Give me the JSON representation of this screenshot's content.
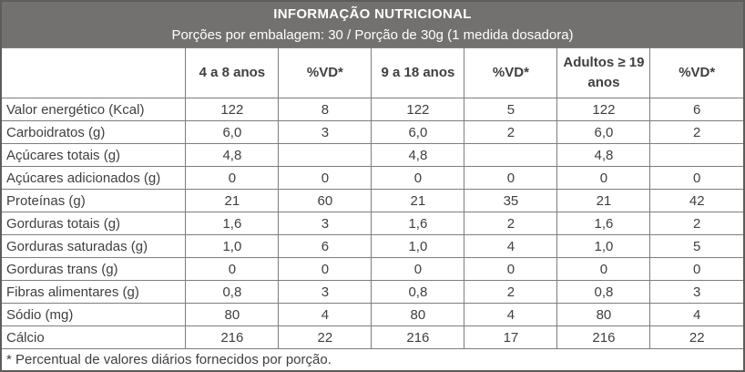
{
  "colors": {
    "header_bg": "#737070",
    "header_text": "#ffffff",
    "grid_border": "#7f7c7c",
    "outer_border": "#5e5b5b",
    "body_text": "#3f3f3f"
  },
  "header": {
    "title": "INFORMAÇÃO NUTRICIONAL",
    "subtitle": "Porções por embalagem: 30 / Porção de 30g (1 medida dosadora)"
  },
  "table": {
    "columns": [
      "",
      "4 a 8 anos",
      "%VD*",
      "9 a 18 anos",
      "%VD*",
      "Adultos ≥ 19 anos",
      "%VD*"
    ],
    "rows": [
      {
        "label": "Valor energético (Kcal)",
        "values": [
          "122",
          "8",
          "122",
          "5",
          "122",
          "6"
        ]
      },
      {
        "label": "Carboidratos (g)",
        "values": [
          "6,0",
          "3",
          "6,0",
          "2",
          "6,0",
          "2"
        ]
      },
      {
        "label": "Açúcares totais (g)",
        "values": [
          "4,8",
          "",
          "4,8",
          "",
          "4,8",
          ""
        ]
      },
      {
        "label": "Açúcares adicionados (g)",
        "values": [
          "0",
          "0",
          "0",
          "0",
          "0",
          "0"
        ]
      },
      {
        "label": "Proteínas (g)",
        "values": [
          "21",
          "60",
          "21",
          "35",
          "21",
          "42"
        ]
      },
      {
        "label": "Gorduras totais (g)",
        "values": [
          "1,6",
          "3",
          "1,6",
          "2",
          "1,6",
          "2"
        ]
      },
      {
        "label": "Gorduras saturadas (g)",
        "values": [
          "1,0",
          "6",
          "1,0",
          "4",
          "1,0",
          "5"
        ]
      },
      {
        "label": "Gorduras trans (g)",
        "values": [
          "0",
          "0",
          "0",
          "0",
          "0",
          "0"
        ]
      },
      {
        "label": "Fibras alimentares (g)",
        "values": [
          "0,8",
          "3",
          "0,8",
          "2",
          "0,8",
          "3"
        ]
      },
      {
        "label": "Sódio (mg)",
        "values": [
          "80",
          "4",
          "80",
          "4",
          "80",
          "4"
        ]
      },
      {
        "label": "Cálcio",
        "values": [
          "216",
          "22",
          "216",
          "17",
          "216",
          "22"
        ]
      }
    ],
    "footnote": "* Percentual de valores diários fornecidos por porção."
  }
}
